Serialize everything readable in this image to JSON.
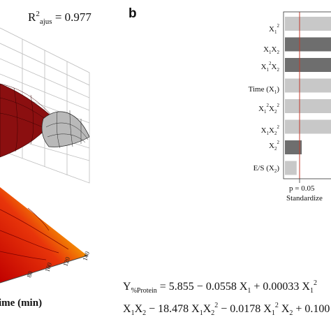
{
  "figure": {
    "r2": {
      "main": "R",
      "sup": "2",
      "sub": "ajus",
      "value": " = 0.977"
    },
    "panel_b_label": "b",
    "time_axis_label": "ime (min)",
    "time_ticks": [
      "80",
      "100",
      "120",
      "140"
    ]
  },
  "pareto": {
    "p_label": "p = 0.05",
    "x_axis_label": "Standardize",
    "colors": {
      "light": "#c8c8c8",
      "dark": "#6e6e6e",
      "ref_line": "#c0392b"
    }
  },
  "equation": {
    "line1": {
      "y": "Y",
      "y_sub": "%Protein",
      "t1": " = 5.855 − 0.0558 X",
      "t1_sub": "1",
      "t2": " + 0.00033 X",
      "t2_sub": "1",
      "t2_sup": "2"
    },
    "line2": {
      "a": "X",
      "a_sub": "1",
      "b": "X",
      "b_sub": "2",
      "c": " − 18.478 X",
      "c_sub": "1",
      "d": "X",
      "d_sub": "2",
      "d_sup": "2",
      "e": " − 0.0178 X",
      "e_sub": "1",
      "e_sup": "2",
      "f": " X",
      "f_sub": "2",
      "g": " + 0.100"
    }
  },
  "chart_data": {
    "type": "bar",
    "title": "",
    "xlabel": "Standardize",
    "ylabel": "",
    "reference_line": {
      "label": "p = 0.05"
    },
    "categories": [
      {
        "main": "X",
        "sub": "1",
        "sup": "2"
      },
      {
        "main": "X",
        "sub": "1",
        "main2": "X",
        "sub2": "2"
      },
      {
        "main": "X",
        "sub": "1",
        "sup": "2",
        "main2": "X",
        "sub2": "2"
      },
      {
        "main": "Time (X",
        "sub": "1",
        "tail": ")"
      },
      {
        "main": "X",
        "sub": "1",
        "sup": "2",
        "main2": "X",
        "sub2": "2",
        "sup2": "2"
      },
      {
        "main": "X",
        "sub": "1",
        "main2": "X",
        "sub2": "2",
        "sup2": "2"
      },
      {
        "main": "X",
        "sub": "2",
        "sup": "2"
      },
      {
        "main": "E/S (X",
        "sub": "2",
        "tail": ")"
      }
    ],
    "values": [
      1,
      1,
      1,
      1,
      1,
      1,
      1,
      1
    ],
    "bar_shade": [
      "light",
      "dark",
      "dark",
      "light",
      "light",
      "light",
      "dark",
      "light"
    ],
    "bar_fraction": [
      1.0,
      1.0,
      1.0,
      1.0,
      1.0,
      1.0,
      0.33,
      0.23
    ]
  }
}
